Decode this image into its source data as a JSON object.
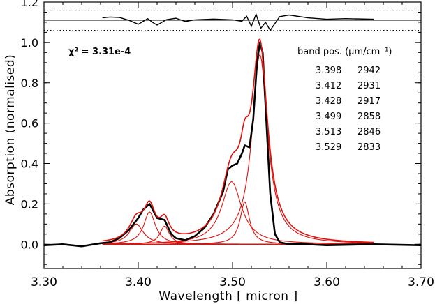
{
  "chart_data": {
    "type": "line",
    "title": "",
    "xlabel": "Wavelength [ micron ]",
    "ylabel": "Absorption (normalised)",
    "xlim": [
      3.3,
      3.7
    ],
    "ylim": [
      -0.12,
      1.2
    ],
    "x_ticks": [
      "3.30",
      "3.40",
      "3.50",
      "3.60",
      "3.70"
    ],
    "y_ticks": [
      "0.0",
      "0.2",
      "0.4",
      "0.6",
      "0.8",
      "1.0",
      "1.2"
    ],
    "chi2_label": "χ² = 3.31e-4",
    "table_header": "band pos. (μm/cm⁻¹)",
    "bands": [
      {
        "um": "3.398",
        "cm": "2942",
        "center": 3.398,
        "amp": 0.1,
        "width": 0.009
      },
      {
        "um": "3.412",
        "cm": "2931",
        "center": 3.412,
        "amp": 0.16,
        "width": 0.0075
      },
      {
        "um": "3.428",
        "cm": "2917",
        "center": 3.428,
        "amp": 0.09,
        "width": 0.006
      },
      {
        "um": "3.499",
        "cm": "2858",
        "center": 3.499,
        "amp": 0.31,
        "width": 0.013
      },
      {
        "um": "3.513",
        "cm": "2846",
        "center": 3.513,
        "amp": 0.21,
        "width": 0.006
      },
      {
        "um": "3.529",
        "cm": "2833",
        "center": 3.529,
        "amp": 0.94,
        "width": 0.01
      }
    ],
    "fit_range": [
      3.362,
      3.65
    ],
    "observed_spectrum": {
      "x": [
        3.3,
        3.32,
        3.34,
        3.36,
        3.37,
        3.38,
        3.39,
        3.4,
        3.405,
        3.412,
        3.42,
        3.428,
        3.435,
        3.44,
        3.45,
        3.46,
        3.47,
        3.48,
        3.49,
        3.495,
        3.5,
        3.505,
        3.51,
        3.513,
        3.518,
        3.522,
        3.526,
        3.529,
        3.532,
        3.536,
        3.54,
        3.545,
        3.55,
        3.56,
        3.58,
        3.6,
        3.65,
        3.7
      ],
      "y": [
        -0.005,
        0.0,
        -0.01,
        0.005,
        0.01,
        0.03,
        0.07,
        0.13,
        0.17,
        0.2,
        0.13,
        0.12,
        0.05,
        0.03,
        0.02,
        0.04,
        0.08,
        0.15,
        0.26,
        0.37,
        0.39,
        0.4,
        0.45,
        0.49,
        0.48,
        0.62,
        0.9,
        1.0,
        0.95,
        0.6,
        0.25,
        0.05,
        0.01,
        0.0,
        0.0,
        -0.005,
        0.0,
        -0.005
      ]
    },
    "residual_panel": {
      "levels": [
        1.16,
        1.11,
        1.06
      ],
      "x": [
        3.362,
        3.37,
        3.38,
        3.39,
        3.4,
        3.41,
        3.415,
        3.42,
        3.43,
        3.44,
        3.45,
        3.46,
        3.48,
        3.5,
        3.51,
        3.515,
        3.52,
        3.525,
        3.53,
        3.535,
        3.54,
        3.55,
        3.56,
        3.58,
        3.6,
        3.62,
        3.65
      ],
      "y": [
        1.122,
        1.126,
        1.124,
        1.11,
        1.09,
        1.118,
        1.1,
        1.086,
        1.113,
        1.12,
        1.104,
        1.112,
        1.116,
        1.112,
        1.105,
        1.13,
        1.08,
        1.14,
        1.07,
        1.1,
        1.06,
        1.128,
        1.136,
        1.122,
        1.115,
        1.118,
        1.115
      ]
    },
    "colors": {
      "observed": "#000000",
      "fit": "#e0100c",
      "axes": "#000000"
    }
  }
}
